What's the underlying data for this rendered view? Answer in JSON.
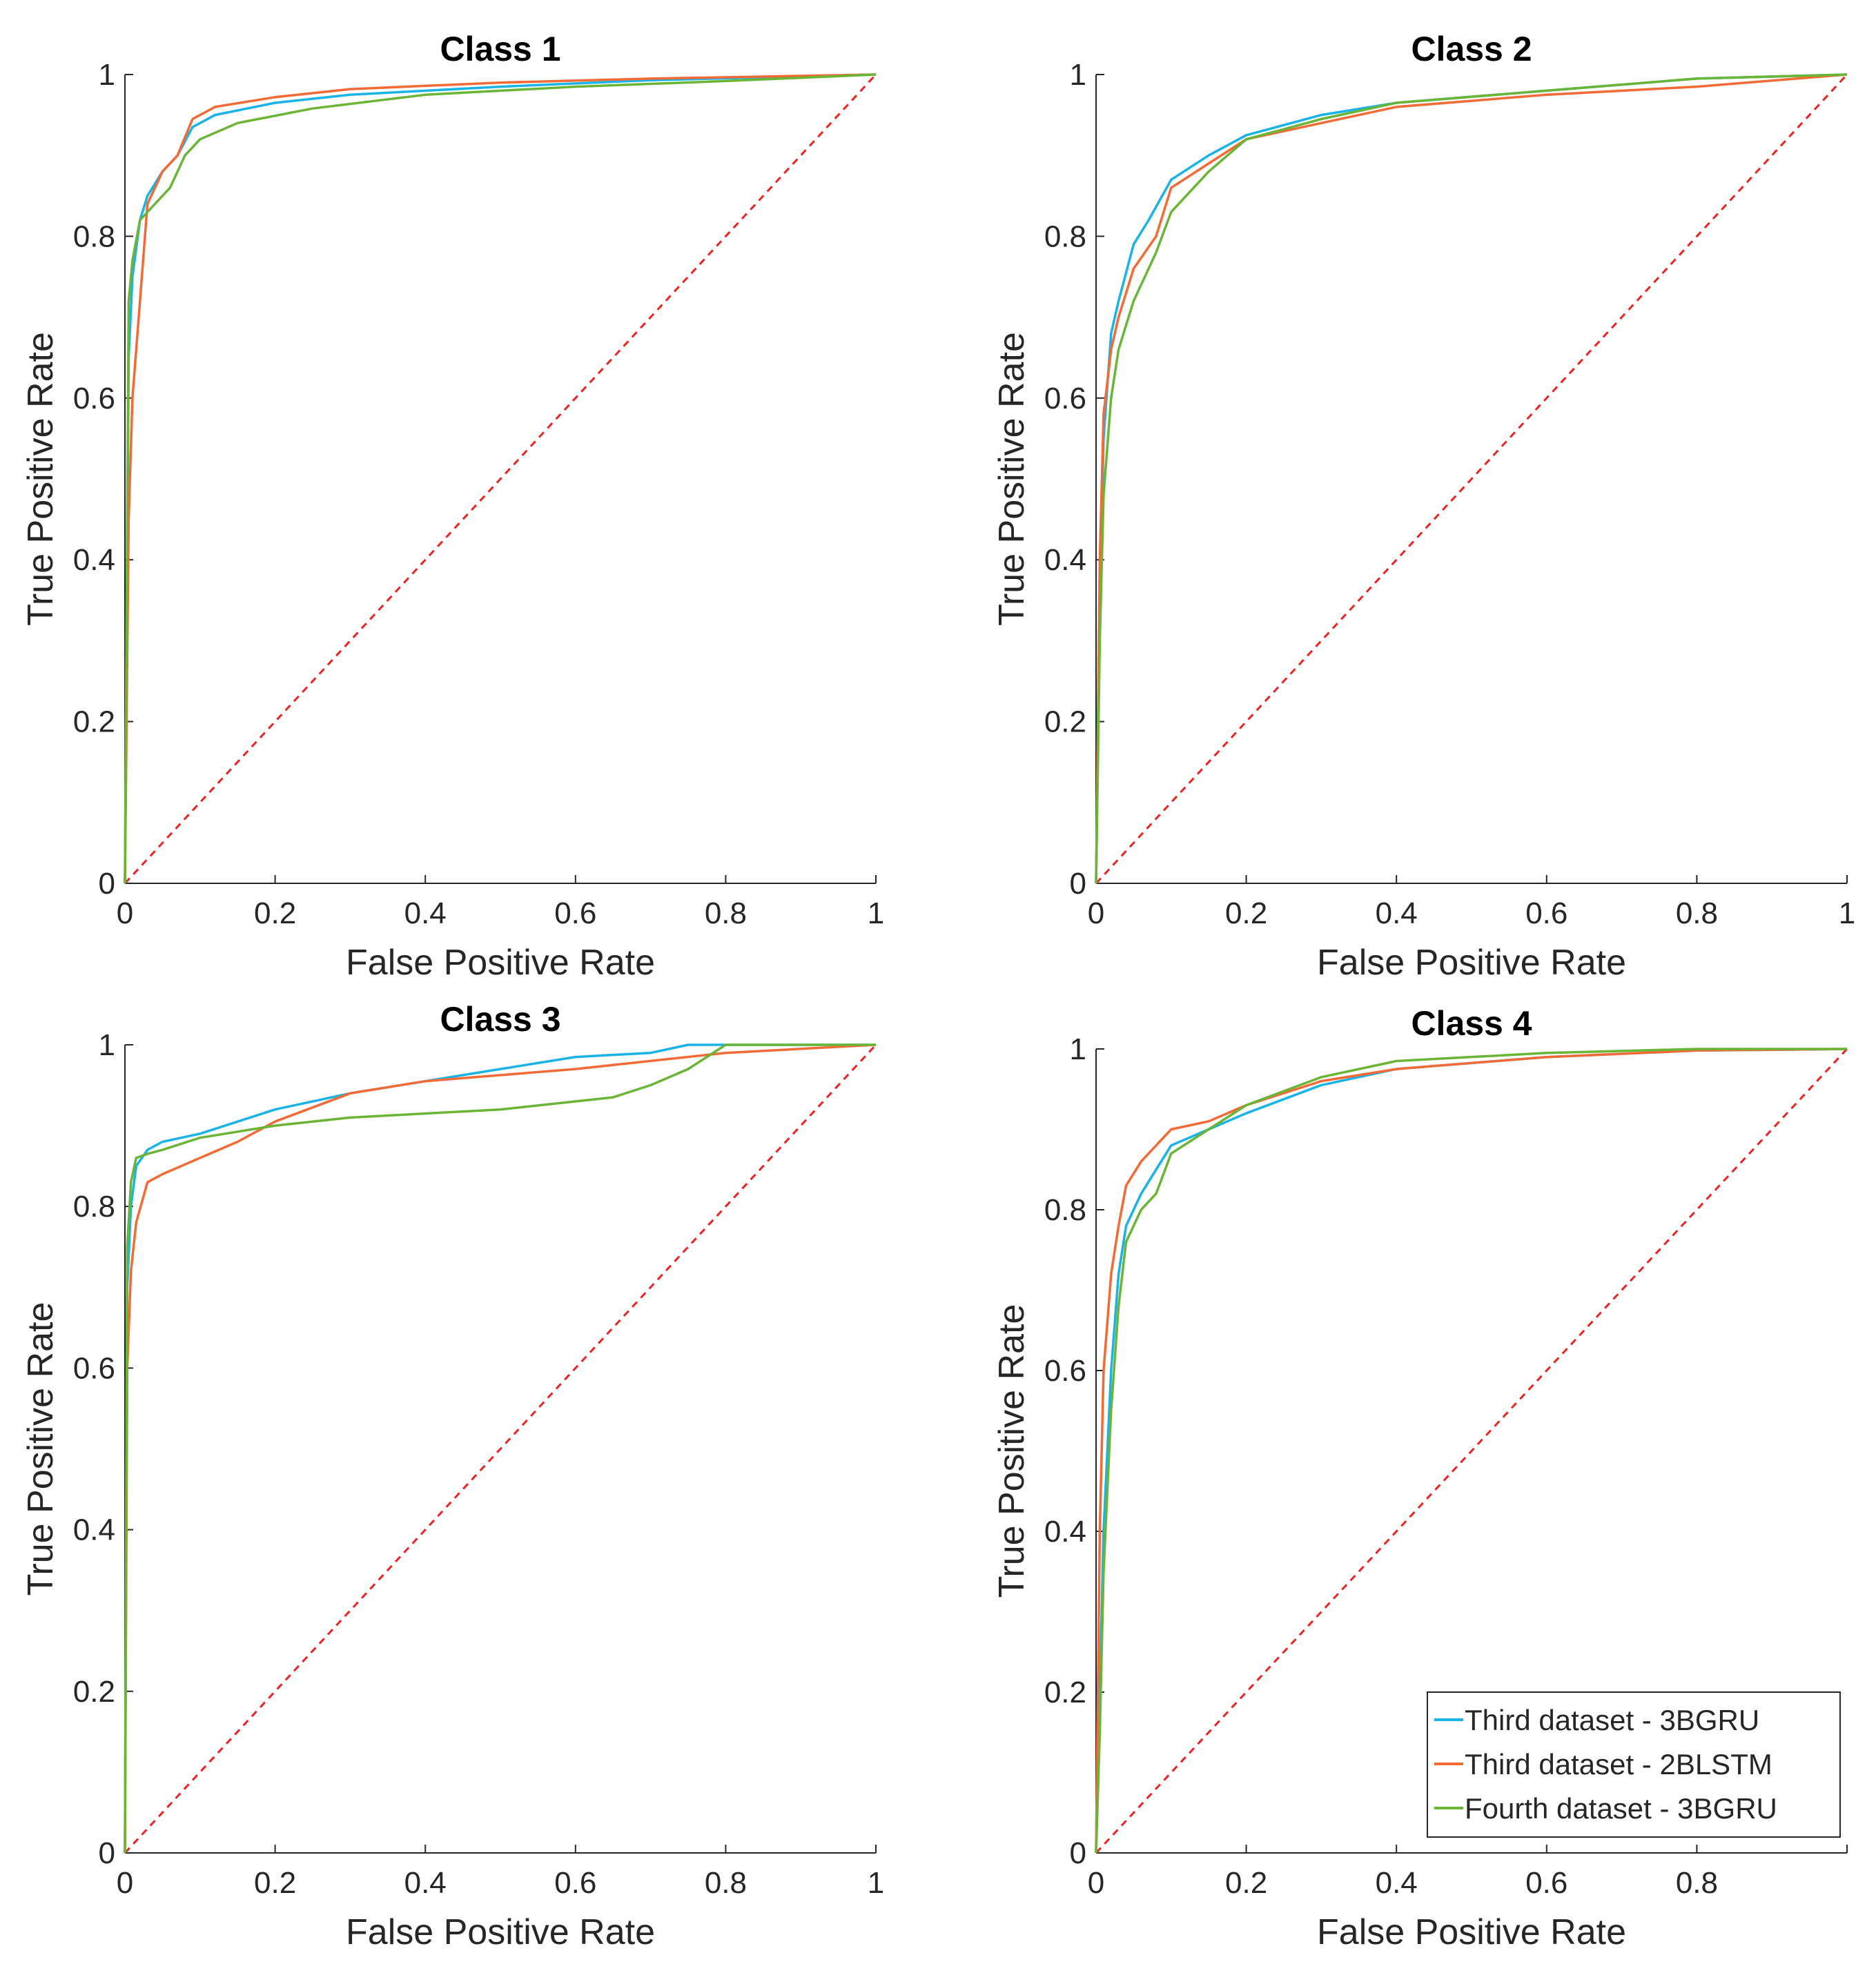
{
  "chart_data": [
    {
      "type": "line",
      "title": "Class 1",
      "xlabel": "False Positive Rate",
      "ylabel": "True Positive Rate",
      "xlim": [
        0,
        1
      ],
      "ylim": [
        0,
        1
      ],
      "xticks": [
        "0",
        "0.2",
        "0.4",
        "0.6",
        "0.8",
        "1"
      ],
      "yticks": [
        "0",
        "0.2",
        "0.4",
        "0.6",
        "0.8",
        "1"
      ],
      "series": [
        {
          "name": "Third dataset - 3BGRU",
          "color": "#1ab3e6",
          "x": [
            0,
            0.005,
            0.01,
            0.02,
            0.03,
            0.05,
            0.07,
            0.09,
            0.12,
            0.2,
            0.3,
            0.5,
            0.7,
            1
          ],
          "y": [
            0,
            0.65,
            0.75,
            0.82,
            0.85,
            0.88,
            0.9,
            0.935,
            0.95,
            0.965,
            0.975,
            0.985,
            0.993,
            1
          ]
        },
        {
          "name": "Third dataset - 2BLSTM",
          "color": "#f26a36",
          "x": [
            0,
            0.005,
            0.01,
            0.02,
            0.03,
            0.05,
            0.07,
            0.09,
            0.12,
            0.2,
            0.3,
            0.5,
            0.7,
            1
          ],
          "y": [
            0,
            0.45,
            0.6,
            0.72,
            0.84,
            0.88,
            0.9,
            0.945,
            0.96,
            0.972,
            0.982,
            0.99,
            0.995,
            1
          ]
        },
        {
          "name": "Fourth dataset - 3BGRU",
          "color": "#6ab535",
          "x": [
            0,
            0.005,
            0.01,
            0.02,
            0.04,
            0.06,
            0.08,
            0.1,
            0.15,
            0.25,
            0.4,
            0.6,
            0.8,
            1
          ],
          "y": [
            0,
            0.72,
            0.77,
            0.82,
            0.84,
            0.86,
            0.9,
            0.92,
            0.94,
            0.958,
            0.975,
            0.985,
            0.992,
            1
          ]
        }
      ],
      "reference_line": {
        "name": "chance",
        "color": "#ee2222",
        "x": [
          0,
          1
        ],
        "y": [
          0,
          1
        ]
      }
    },
    {
      "type": "line",
      "title": "Class 2",
      "xlabel": "False Positive Rate",
      "ylabel": "True Positive Rate",
      "xlim": [
        0,
        1
      ],
      "ylim": [
        0,
        1
      ],
      "xticks": [
        "0",
        "0.2",
        "0.4",
        "0.6",
        "0.8",
        "1"
      ],
      "yticks": [
        "0",
        "0.2",
        "0.4",
        "0.6",
        "0.8",
        "1"
      ],
      "series": [
        {
          "name": "Third dataset - 3BGRU",
          "color": "#1ab3e6",
          "x": [
            0,
            0.005,
            0.01,
            0.02,
            0.03,
            0.05,
            0.07,
            0.1,
            0.15,
            0.2,
            0.3,
            0.4,
            0.6,
            0.8,
            1
          ],
          "y": [
            0,
            0.35,
            0.55,
            0.68,
            0.72,
            0.79,
            0.82,
            0.87,
            0.9,
            0.925,
            0.95,
            0.965,
            0.98,
            0.995,
            1
          ]
        },
        {
          "name": "Third dataset - 2BLSTM",
          "color": "#f26a36",
          "x": [
            0,
            0.005,
            0.01,
            0.02,
            0.03,
            0.05,
            0.08,
            0.1,
            0.15,
            0.2,
            0.3,
            0.4,
            0.6,
            0.8,
            1
          ],
          "y": [
            0,
            0.4,
            0.58,
            0.66,
            0.7,
            0.76,
            0.8,
            0.86,
            0.89,
            0.92,
            0.94,
            0.96,
            0.975,
            0.985,
            1
          ]
        },
        {
          "name": "Fourth dataset - 3BGRU",
          "color": "#6ab535",
          "x": [
            0,
            0.005,
            0.01,
            0.02,
            0.03,
            0.05,
            0.08,
            0.1,
            0.15,
            0.2,
            0.3,
            0.4,
            0.6,
            0.8,
            1
          ],
          "y": [
            0,
            0.3,
            0.48,
            0.6,
            0.66,
            0.72,
            0.78,
            0.83,
            0.88,
            0.92,
            0.945,
            0.965,
            0.98,
            0.995,
            1
          ]
        }
      ],
      "reference_line": {
        "name": "chance",
        "color": "#ee2222",
        "x": [
          0,
          1
        ],
        "y": [
          0,
          1
        ]
      }
    },
    {
      "type": "line",
      "title": "Class 3",
      "xlabel": "False Positive Rate",
      "ylabel": "True Positive Rate",
      "xlim": [
        0,
        1
      ],
      "ylim": [
        0,
        1
      ],
      "xticks": [
        "0",
        "0.2",
        "0.4",
        "0.6",
        "0.8",
        "1"
      ],
      "yticks": [
        "0",
        "0.2",
        "0.4",
        "0.6",
        "0.8",
        "1"
      ],
      "series": [
        {
          "name": "Third dataset - 3BGRU",
          "color": "#1ab3e6",
          "x": [
            0,
            0.003,
            0.008,
            0.015,
            0.03,
            0.05,
            0.1,
            0.2,
            0.3,
            0.4,
            0.5,
            0.6,
            0.7,
            0.75,
            1
          ],
          "y": [
            0,
            0.7,
            0.8,
            0.85,
            0.87,
            0.88,
            0.89,
            0.92,
            0.94,
            0.955,
            0.97,
            0.985,
            0.99,
            1,
            1
          ]
        },
        {
          "name": "Third dataset - 2BLSTM",
          "color": "#f26a36",
          "x": [
            0,
            0.003,
            0.008,
            0.015,
            0.03,
            0.05,
            0.1,
            0.15,
            0.2,
            0.3,
            0.4,
            0.6,
            0.8,
            1
          ],
          "y": [
            0,
            0.6,
            0.72,
            0.78,
            0.83,
            0.84,
            0.86,
            0.88,
            0.905,
            0.94,
            0.955,
            0.97,
            0.99,
            1
          ]
        },
        {
          "name": "Fourth dataset - 3BGRU",
          "color": "#6ab535",
          "x": [
            0,
            0.003,
            0.008,
            0.015,
            0.03,
            0.05,
            0.1,
            0.2,
            0.3,
            0.5,
            0.65,
            0.7,
            0.75,
            0.8,
            1
          ],
          "y": [
            0,
            0.75,
            0.83,
            0.86,
            0.865,
            0.87,
            0.885,
            0.9,
            0.91,
            0.92,
            0.935,
            0.95,
            0.97,
            1,
            1
          ]
        }
      ],
      "reference_line": {
        "name": "chance",
        "color": "#ee2222",
        "x": [
          0,
          1
        ],
        "y": [
          0,
          1
        ]
      }
    },
    {
      "type": "line",
      "title": "Class 4",
      "xlabel": "False Positive Rate",
      "ylabel": "True Positive Rate",
      "xlim": [
        0,
        1
      ],
      "ylim": [
        0,
        1
      ],
      "xticks": [
        "0",
        "0.2",
        "0.4",
        "0.6",
        "0.8",
        ""
      ],
      "yticks": [
        "0",
        "0.2",
        "0.4",
        "0.6",
        "0.8",
        "1"
      ],
      "series": [
        {
          "name": "Third dataset - 3BGRU",
          "color": "#1ab3e6",
          "x": [
            0,
            0.005,
            0.01,
            0.02,
            0.03,
            0.04,
            0.06,
            0.08,
            0.1,
            0.15,
            0.2,
            0.3,
            0.4,
            0.6,
            0.8,
            1
          ],
          "y": [
            0,
            0.2,
            0.4,
            0.6,
            0.72,
            0.78,
            0.82,
            0.85,
            0.88,
            0.9,
            0.92,
            0.955,
            0.975,
            0.99,
            0.998,
            1
          ]
        },
        {
          "name": "Third dataset - 2BLSTM",
          "color": "#f26a36",
          "x": [
            0,
            0.005,
            0.01,
            0.02,
            0.03,
            0.04,
            0.06,
            0.08,
            0.1,
            0.15,
            0.2,
            0.3,
            0.4,
            0.6,
            0.8,
            1
          ],
          "y": [
            0,
            0.4,
            0.6,
            0.72,
            0.78,
            0.83,
            0.86,
            0.88,
            0.9,
            0.91,
            0.93,
            0.96,
            0.975,
            0.99,
            0.998,
            1
          ]
        },
        {
          "name": "Fourth dataset - 3BGRU",
          "color": "#6ab535",
          "x": [
            0,
            0.005,
            0.01,
            0.02,
            0.03,
            0.04,
            0.06,
            0.08,
            0.1,
            0.15,
            0.2,
            0.3,
            0.4,
            0.6,
            0.8,
            1
          ],
          "y": [
            0,
            0.15,
            0.35,
            0.55,
            0.68,
            0.76,
            0.8,
            0.82,
            0.87,
            0.9,
            0.93,
            0.965,
            0.985,
            0.995,
            1,
            1
          ]
        }
      ],
      "reference_line": {
        "name": "chance",
        "color": "#ee2222",
        "x": [
          0,
          1
        ],
        "y": [
          0,
          1
        ]
      },
      "legend": {
        "placement": "bottom-right",
        "entries": [
          "Third dataset - 3BGRU",
          "Third dataset - 2BLSTM",
          "Fourth dataset - 3BGRU"
        ]
      }
    }
  ]
}
